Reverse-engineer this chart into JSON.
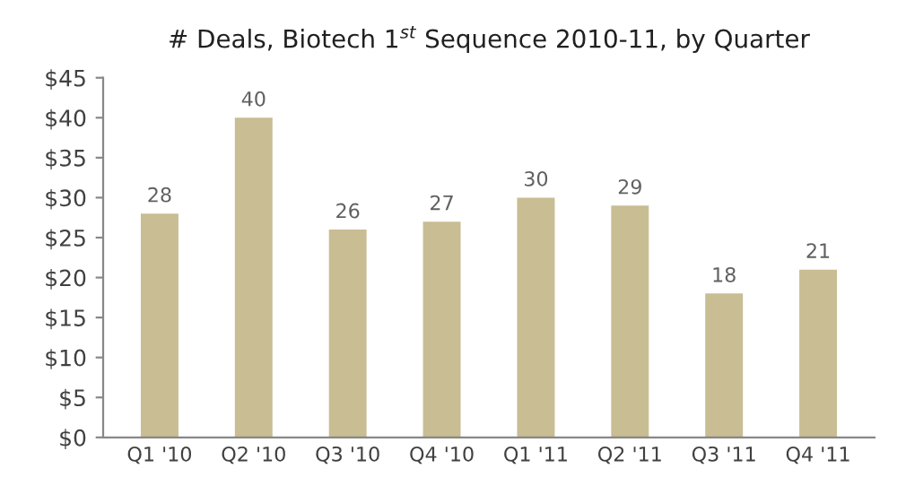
{
  "chart_data": {
    "type": "bar",
    "title": "# Deals, Biotech 1$^{st}$ Sequence 2010-11, by Quarter",
    "categories": [
      "Q1 '10",
      "Q2 '10",
      "Q3 '10",
      "Q4 '10",
      "Q1 '11",
      "Q2 '11",
      "Q3 '11",
      "Q4 '11"
    ],
    "values": [
      28,
      40,
      26,
      27,
      30,
      29,
      18,
      21
    ],
    "color": "#c8bd93",
    "ylim": [
      0,
      45
    ],
    "yticks": [
      {
        "value": 0,
        "label": "$0"
      },
      {
        "value": 5,
        "label": "$5"
      },
      {
        "value": 10,
        "label": "$10"
      },
      {
        "value": 15,
        "label": "$15"
      },
      {
        "value": 20,
        "label": "$20"
      },
      {
        "value": 25,
        "label": "$25"
      },
      {
        "value": 30,
        "label": "$30"
      },
      {
        "value": 35,
        "label": "$35"
      },
      {
        "value": 40,
        "label": "$40"
      },
      {
        "value": 45,
        "label": "$45"
      }
    ],
    "data_labels": true
  }
}
